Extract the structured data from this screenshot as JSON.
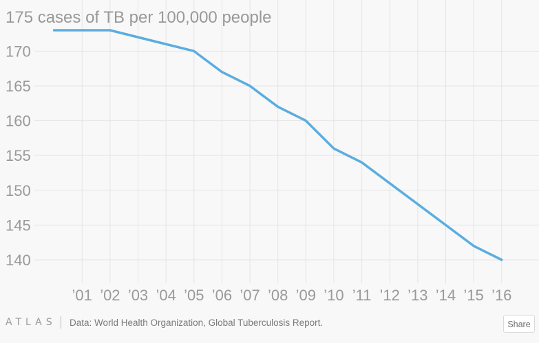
{
  "chart_data": {
    "type": "line",
    "title": "175 cases of TB per 100,000 people",
    "x": [
      2000,
      2001,
      2002,
      2003,
      2004,
      2005,
      2006,
      2007,
      2008,
      2009,
      2010,
      2011,
      2012,
      2013,
      2014,
      2015,
      2016
    ],
    "x_tick_labels": [
      "’01",
      "’02",
      "’03",
      "’04",
      "’05",
      "’06",
      "’07",
      "’08",
      "’09",
      "’10",
      "’11",
      "’12",
      "’13",
      "’14",
      "’15",
      "’16"
    ],
    "x_tick_values": [
      2001,
      2002,
      2003,
      2004,
      2005,
      2006,
      2007,
      2008,
      2009,
      2010,
      2011,
      2012,
      2013,
      2014,
      2015,
      2016
    ],
    "y_ticks": [
      170,
      165,
      160,
      155,
      150,
      145,
      140
    ],
    "series": [
      {
        "values": [
          173,
          173,
          173,
          172,
          171,
          170,
          167,
          165,
          162,
          160,
          156,
          154,
          151,
          148,
          145,
          142,
          140
        ]
      }
    ],
    "ylim": [
      137,
      175
    ],
    "xlim": [
      1999.05,
      2016.4
    ],
    "grid": true,
    "colors": {
      "line": "#5aade0",
      "grid": "#e4e4e4",
      "text": "#999999"
    }
  },
  "footer": {
    "brand": "ATLAS",
    "source": "Data:  World Health Organization, Global Tuberculosis Report.",
    "share_label": "Share"
  }
}
